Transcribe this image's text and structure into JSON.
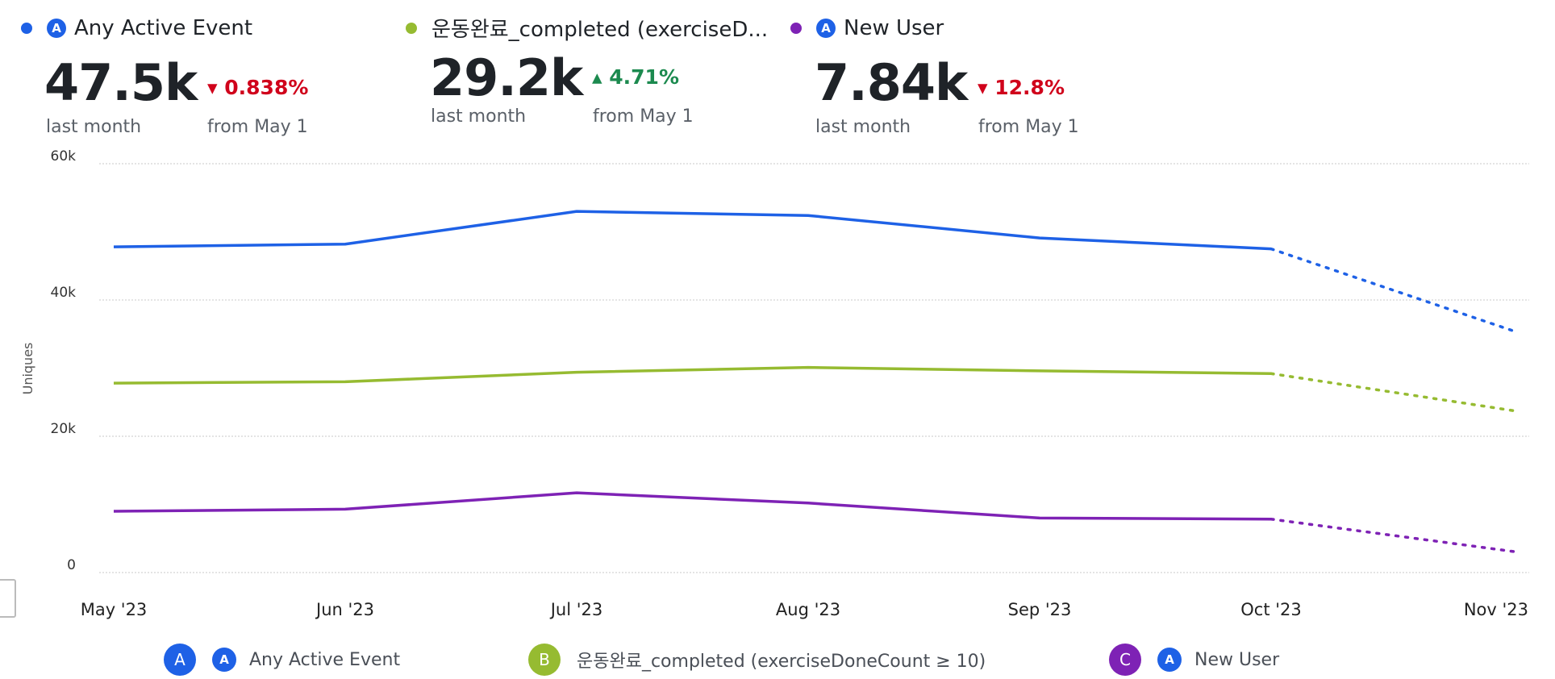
{
  "kpis": [
    {
      "label": "Any Active Event",
      "color": "#1e61e6",
      "value": "47.5k",
      "period": "last month",
      "delta": "0.838%",
      "direction": "down",
      "since": "from May 1",
      "icon": "amplitude-icon"
    },
    {
      "label": "운동완료_completed (exerciseD...",
      "color": "#96bb31",
      "value": "29.2k",
      "period": "last month",
      "delta": "4.71%",
      "direction": "up",
      "since": "from May 1"
    },
    {
      "label": "New User",
      "color": "#7e22b5",
      "value": "7.84k",
      "period": "last month",
      "delta": "12.8%",
      "direction": "down",
      "since": "from May 1",
      "icon": "amplitude-icon"
    }
  ],
  "legend": [
    {
      "letter": "A",
      "label": "Any Active Event",
      "color": "#1e61e6"
    },
    {
      "letter": "B",
      "label": "운동완료_completed (exerciseDoneCount ≥ 10)",
      "color": "#96bb31"
    },
    {
      "letter": "C",
      "label": "New User",
      "color": "#7e22b5"
    }
  ],
  "chart_data": {
    "type": "line",
    "ylabel": "Uniques",
    "ylim": [
      0,
      60000
    ],
    "yticks": [
      "0",
      "20k",
      "40k",
      "60k"
    ],
    "categories": [
      "May '23",
      "Jun '23",
      "Jul '23",
      "Aug '23",
      "Sep '23",
      "Oct '23",
      "Nov '23"
    ],
    "grid": true,
    "projected_last_segment": true,
    "series": [
      {
        "name": "Any Active Event",
        "color": "#1e61e6",
        "values": [
          47800,
          48200,
          53000,
          52400,
          49100,
          47500,
          36000
        ]
      },
      {
        "name": "운동완료_completed (exerciseDoneCount ≥ 10)",
        "color": "#96bb31",
        "values": [
          27800,
          28000,
          29400,
          30100,
          29600,
          29200,
          24000
        ]
      },
      {
        "name": "New User",
        "color": "#7e22b5",
        "values": [
          9000,
          9300,
          11700,
          10200,
          8000,
          7840,
          3300
        ]
      }
    ]
  }
}
